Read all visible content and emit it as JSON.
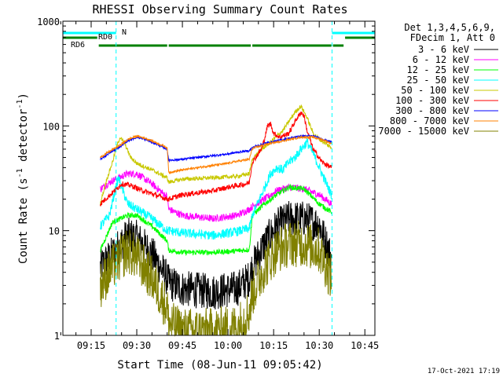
{
  "chart_data": {
    "type": "line",
    "title": "RHESSI Observing Summary Count Rates",
    "xlabel": "Start Time (08-Jun-11 09:05:42)",
    "ylabel_parts": [
      "Count Rate (s",
      "-1",
      " detector",
      "-1",
      ")"
    ],
    "yscale": "log",
    "ylim": [
      1,
      1000
    ],
    "xlim_min": [
      5.7,
      108.3
    ],
    "y_ticks": [
      {
        "v": 1,
        "label": "1"
      },
      {
        "v": 10,
        "label": "10"
      },
      {
        "v": 100,
        "label": "100"
      },
      {
        "v": 1000,
        "label": "1000"
      }
    ],
    "x_ticks": [
      {
        "m": 15,
        "label": "09:15"
      },
      {
        "m": 30,
        "label": "09:30"
      },
      {
        "m": 45,
        "label": "09:45"
      },
      {
        "m": 60,
        "label": "10:00"
      },
      {
        "m": 75,
        "label": "10:15"
      },
      {
        "m": 90,
        "label": "10:30"
      },
      {
        "m": 105,
        "label": "10:45"
      }
    ],
    "legend_header": [
      "Det 1,3,4,5,6,9,",
      "FDecim 1, Att 0"
    ],
    "legend_position": "top-right",
    "timestamp": "17-Oct-2021 17:19",
    "night_intervals": [
      [
        5.7,
        23.2
      ],
      [
        94.2,
        108.3
      ]
    ],
    "flags": [
      {
        "name": "N",
        "color": "#00ffff",
        "segments": [
          [
            5.7,
            23.2
          ],
          [
            94.2,
            108.3
          ]
        ],
        "level": 0
      },
      {
        "name": "RD0",
        "color": "#008000",
        "segments": [
          [
            5.7,
            17
          ],
          [
            98.5,
            108.3
          ]
        ],
        "level": 1
      },
      {
        "name": "RD6",
        "color": "#008000",
        "segments": [
          [
            17.5,
            40
          ],
          [
            40.5,
            67.5
          ],
          [
            68,
            94
          ],
          [
            94.5,
            98
          ]
        ],
        "level": 2
      }
    ],
    "data_windows": [
      [
        18,
        40
      ],
      [
        40.5,
        67
      ],
      [
        68,
        94
      ]
    ],
    "series": [
      {
        "name": "3 - 6 keV",
        "color": "#000000",
        "noise": 0.35,
        "points": [
          [
            18,
            4.5
          ],
          [
            22,
            6
          ],
          [
            27,
            9
          ],
          [
            30,
            8.5
          ],
          [
            35,
            6
          ],
          [
            40,
            3.5
          ],
          [
            40.5,
            3.2
          ],
          [
            45,
            2.8
          ],
          [
            55,
            2.6
          ],
          [
            63,
            2.8
          ],
          [
            67,
            3.5
          ],
          [
            68,
            4.5
          ],
          [
            72,
            7.5
          ],
          [
            76,
            11
          ],
          [
            80,
            13
          ],
          [
            85,
            13
          ],
          [
            90,
            11.5
          ],
          [
            94,
            5.5
          ]
        ]
      },
      {
        "name": "6 - 12 keV",
        "color": "#ff00ff",
        "noise": 0.07,
        "points": [
          [
            18,
            25
          ],
          [
            22,
            30
          ],
          [
            27,
            35
          ],
          [
            30,
            35
          ],
          [
            35,
            28
          ],
          [
            40,
            21
          ],
          [
            40.5,
            16
          ],
          [
            45,
            14
          ],
          [
            55,
            13
          ],
          [
            63,
            14
          ],
          [
            67,
            16
          ],
          [
            68,
            17
          ],
          [
            72,
            20
          ],
          [
            76,
            24
          ],
          [
            80,
            26
          ],
          [
            85,
            25
          ],
          [
            90,
            22
          ],
          [
            94,
            18
          ]
        ]
      },
      {
        "name": "12 - 25 keV",
        "color": "#00ff00",
        "noise": 0.05,
        "points": [
          [
            18,
            6.5
          ],
          [
            22,
            12
          ],
          [
            27,
            14
          ],
          [
            30,
            14
          ],
          [
            35,
            11
          ],
          [
            40,
            8
          ],
          [
            40.5,
            6.5
          ],
          [
            45,
            6.2
          ],
          [
            55,
            6.2
          ],
          [
            63,
            6.4
          ],
          [
            67,
            6.6
          ],
          [
            68,
            14
          ],
          [
            72,
            18
          ],
          [
            76,
            22
          ],
          [
            80,
            26
          ],
          [
            85,
            25
          ],
          [
            90,
            18
          ],
          [
            94,
            15
          ]
        ]
      },
      {
        "name": "25 - 50 keV",
        "color": "#00ffff",
        "noise": 0.09,
        "points": [
          [
            18,
            11
          ],
          [
            21,
            14
          ],
          [
            23,
            25
          ],
          [
            24,
            32
          ],
          [
            25,
            26
          ],
          [
            27,
            18
          ],
          [
            30,
            16
          ],
          [
            35,
            13
          ],
          [
            40,
            10
          ],
          [
            40.5,
            10
          ],
          [
            45,
            9.5
          ],
          [
            55,
            9
          ],
          [
            63,
            9.8
          ],
          [
            67,
            10.5
          ],
          [
            68,
            14
          ],
          [
            71,
            22
          ],
          [
            74,
            35
          ],
          [
            76,
            40
          ],
          [
            78,
            38
          ],
          [
            80,
            45
          ],
          [
            82,
            50
          ],
          [
            84,
            60
          ],
          [
            86,
            70
          ],
          [
            88,
            55
          ],
          [
            90,
            40
          ],
          [
            94,
            22
          ]
        ]
      },
      {
        "name": "50 - 100 keV",
        "color": "#c8c800",
        "noise": 0.04,
        "points": [
          [
            18,
            18
          ],
          [
            20,
            30
          ],
          [
            22,
            45
          ],
          [
            23.5,
            65
          ],
          [
            24.5,
            78
          ],
          [
            26,
            68
          ],
          [
            28,
            50
          ],
          [
            30,
            44
          ],
          [
            35,
            38
          ],
          [
            40,
            32
          ],
          [
            40.5,
            29
          ],
          [
            45,
            31
          ],
          [
            55,
            32
          ],
          [
            63,
            33
          ],
          [
            67,
            35
          ],
          [
            68,
            48
          ],
          [
            71,
            60
          ],
          [
            74,
            70
          ],
          [
            76,
            80
          ],
          [
            78,
            90
          ],
          [
            80,
            110
          ],
          [
            82,
            135
          ],
          [
            84,
            155
          ],
          [
            86,
            120
          ],
          [
            88,
            85
          ],
          [
            90,
            75
          ],
          [
            94,
            62
          ]
        ]
      },
      {
        "name": "100 - 300 keV",
        "color": "#ff0000",
        "noise": 0.05,
        "points": [
          [
            18,
            18
          ],
          [
            22,
            23
          ],
          [
            25,
            28
          ],
          [
            28,
            27
          ],
          [
            32,
            24
          ],
          [
            36,
            22
          ],
          [
            40,
            20
          ],
          [
            40.5,
            20
          ],
          [
            45,
            22
          ],
          [
            50,
            23
          ],
          [
            55,
            24
          ],
          [
            60,
            26
          ],
          [
            63,
            27
          ],
          [
            66,
            28
          ],
          [
            67,
            29
          ],
          [
            68,
            45
          ],
          [
            71,
            60
          ],
          [
            72,
            75
          ],
          [
            73,
            100
          ],
          [
            74,
            105
          ],
          [
            75,
            85
          ],
          [
            77,
            78
          ],
          [
            80,
            85
          ],
          [
            82,
            110
          ],
          [
            84,
            135
          ],
          [
            85,
            125
          ],
          [
            86,
            90
          ],
          [
            88,
            60
          ],
          [
            91,
            45
          ],
          [
            94,
            40
          ]
        ]
      },
      {
        "name": "300 - 800 keV",
        "color": "#0000ff",
        "noise": 0.02,
        "points": [
          [
            18,
            48
          ],
          [
            21,
            55
          ],
          [
            24,
            62
          ],
          [
            27,
            72
          ],
          [
            30,
            78
          ],
          [
            33,
            74
          ],
          [
            36,
            68
          ],
          [
            40,
            60
          ],
          [
            40.5,
            47
          ],
          [
            45,
            48
          ],
          [
            50,
            50
          ],
          [
            55,
            52
          ],
          [
            60,
            54
          ],
          [
            63,
            56
          ],
          [
            67,
            58
          ],
          [
            68,
            62
          ],
          [
            72,
            68
          ],
          [
            76,
            72
          ],
          [
            80,
            76
          ],
          [
            84,
            80
          ],
          [
            88,
            80
          ],
          [
            91,
            75
          ],
          [
            94,
            70
          ]
        ]
      },
      {
        "name": "800 - 7000 keV",
        "color": "#ff8000",
        "noise": 0.02,
        "points": [
          [
            18,
            50
          ],
          [
            21,
            57
          ],
          [
            24,
            64
          ],
          [
            27,
            74
          ],
          [
            30,
            80
          ],
          [
            33,
            76
          ],
          [
            36,
            70
          ],
          [
            40,
            62
          ],
          [
            40.5,
            36
          ],
          [
            45,
            38
          ],
          [
            50,
            40
          ],
          [
            55,
            42
          ],
          [
            60,
            44
          ],
          [
            63,
            46
          ],
          [
            67,
            48
          ],
          [
            68,
            61
          ],
          [
            72,
            66
          ],
          [
            76,
            70
          ],
          [
            80,
            74
          ],
          [
            84,
            78
          ],
          [
            88,
            78
          ],
          [
            91,
            74
          ],
          [
            94,
            68
          ]
        ]
      },
      {
        "name": "7000 - 15000 keV",
        "color": "#808000",
        "noise": 0.45,
        "points": [
          [
            18,
            3
          ],
          [
            22,
            4.5
          ],
          [
            27,
            6.5
          ],
          [
            30,
            5.5
          ],
          [
            35,
            3.5
          ],
          [
            40,
            1.8
          ],
          [
            40.5,
            1.3
          ],
          [
            45,
            1.1
          ],
          [
            55,
            1.1
          ],
          [
            63,
            1.2
          ],
          [
            67,
            1.7
          ],
          [
            68,
            2.5
          ],
          [
            72,
            4.5
          ],
          [
            76,
            6.5
          ],
          [
            80,
            7.5
          ],
          [
            85,
            7.5
          ],
          [
            90,
            6.5
          ],
          [
            94,
            3.5
          ]
        ]
      }
    ]
  }
}
